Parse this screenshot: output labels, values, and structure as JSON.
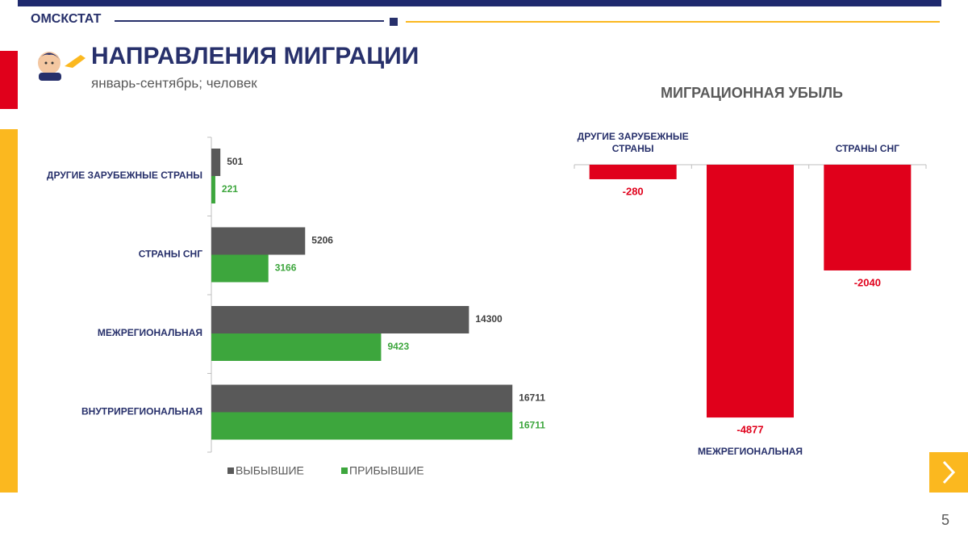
{
  "header": {
    "brand": "ОМСКСТАТ",
    "title": "НАПРАВЛЕНИЯ МИГРАЦИИ",
    "subtitle": "январь-сентябрь; человек",
    "page": "5"
  },
  "chart_data": [
    {
      "type": "hbar",
      "categories": [
        "ДРУГИЕ ЗАРУБЕЖНЫЕ СТРАНЫ",
        "СТРАНЫ СНГ",
        "МЕЖРЕГИОНАЛЬНАЯ",
        "ВНУТРИРЕГИОНАЛЬНАЯ"
      ],
      "series": [
        {
          "name": "ВЫБЫВШИЕ",
          "color": "#595959",
          "label_color": "#404040",
          "values": [
            501,
            5206,
            14300,
            16711
          ]
        },
        {
          "name": "ПРИБЫВШИЕ",
          "color": "#3da63d",
          "label_color": "#3da63d",
          "values": [
            221,
            3166,
            9423,
            16711
          ]
        }
      ],
      "xlim": [
        0,
        18000
      ],
      "legend": "bottom"
    },
    {
      "type": "bar",
      "title": "МИГРАЦИОННАЯ УБЫЛЬ",
      "categories": [
        "ДРУГИЕ ЗАРУБЕЖНЫЕ СТРАНЫ",
        "МЕЖРЕГИОНАЛЬНАЯ",
        "СТРАНЫ СНГ"
      ],
      "values": [
        -280,
        -4877,
        -2040
      ],
      "color": "#e0001b",
      "ylim": [
        -5000,
        0
      ]
    }
  ]
}
